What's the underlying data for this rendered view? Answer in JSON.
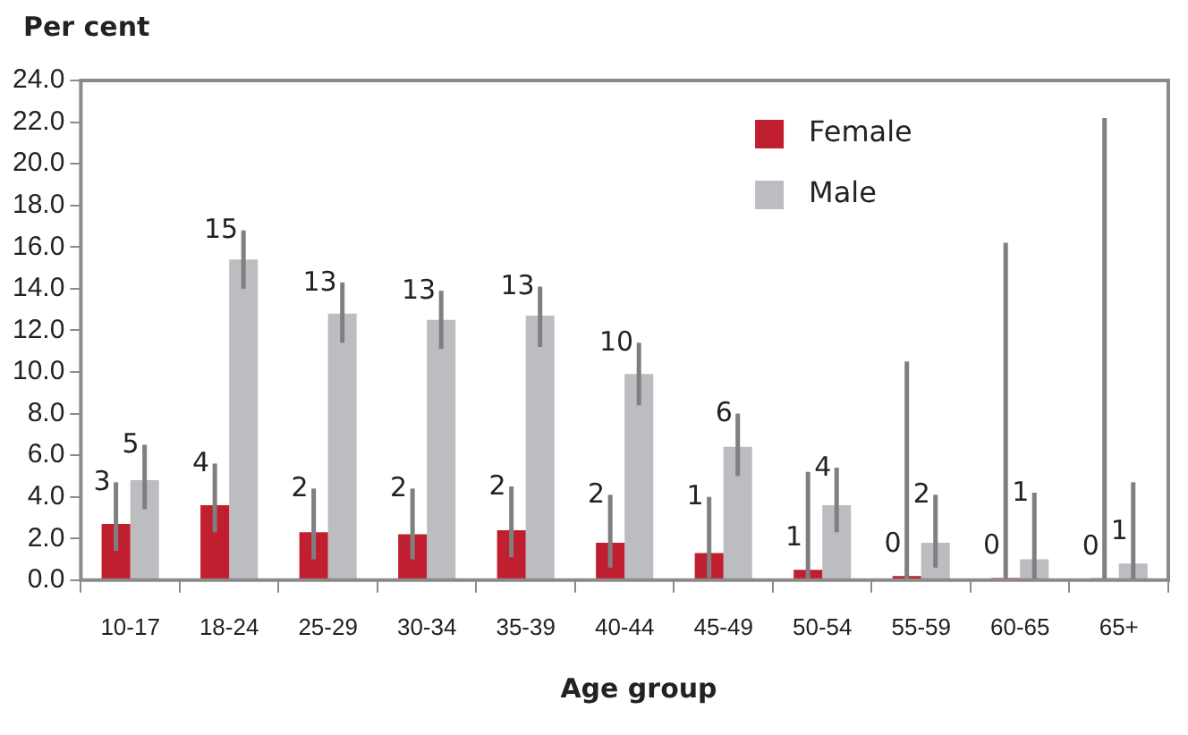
{
  "chart_data": {
    "type": "bar",
    "ylabel": "Per cent",
    "xlabel": "Age group",
    "categories": [
      "10-17",
      "18-24",
      "25-29",
      "30-34",
      "35-39",
      "40-44",
      "45-49",
      "50-54",
      "55-59",
      "60-65",
      "65+"
    ],
    "series": [
      {
        "name": "Female",
        "color": "#c01f2f",
        "values": [
          2.7,
          3.6,
          2.3,
          2.2,
          2.4,
          1.8,
          1.3,
          0.5,
          0.2,
          0.1,
          0
        ],
        "errors": [
          [
            1.4,
            4.7
          ],
          [
            2.3,
            5.6
          ],
          [
            1.0,
            4.4
          ],
          [
            1.0,
            4.4
          ],
          [
            1.1,
            4.5
          ],
          [
            0.6,
            4.1
          ],
          [
            0.1,
            4.0
          ],
          [
            0,
            5.2
          ],
          [
            0,
            10.5
          ],
          [
            0,
            16.2
          ],
          [
            0,
            22.2
          ]
        ],
        "value_labels": [
          "3",
          "4",
          "2",
          "2",
          "2",
          "2",
          "1",
          "1",
          "0",
          "0",
          "0"
        ]
      },
      {
        "name": "Male",
        "color": "#bcbdc1",
        "values": [
          4.8,
          15.4,
          12.8,
          12.5,
          12.7,
          9.9,
          6.4,
          3.6,
          1.8,
          1.0,
          0.8
        ],
        "errors": [
          [
            3.4,
            6.5
          ],
          [
            14.0,
            16.8
          ],
          [
            11.4,
            14.3
          ],
          [
            11.1,
            13.9
          ],
          [
            11.2,
            14.1
          ],
          [
            8.4,
            11.4
          ],
          [
            5.0,
            8.0
          ],
          [
            2.3,
            5.4
          ],
          [
            0.6,
            4.1
          ],
          [
            0,
            4.2
          ],
          [
            0,
            4.7
          ]
        ],
        "value_labels": [
          "5",
          "15",
          "13",
          "13",
          "13",
          "10",
          "6",
          "4",
          "2",
          "1",
          "1"
        ]
      }
    ],
    "ylim": [
      0,
      24
    ],
    "yticks": [
      {
        "value": 0,
        "label": "0.0"
      },
      {
        "value": 2,
        "label": "2.0"
      },
      {
        "value": 4,
        "label": "4.0"
      },
      {
        "value": 6,
        "label": "6.0"
      },
      {
        "value": 8,
        "label": "8.0"
      },
      {
        "value": 10,
        "label": "10.0"
      },
      {
        "value": 12,
        "label": "12.0"
      },
      {
        "value": 14,
        "label": "14.0"
      },
      {
        "value": 16,
        "label": "16.0"
      },
      {
        "value": 18,
        "label": "18.0"
      },
      {
        "value": 20,
        "label": "20.0"
      },
      {
        "value": 22,
        "label": "22.0"
      },
      {
        "value": 24,
        "label": "24.0"
      }
    ],
    "grid": false,
    "legend": "top right"
  }
}
